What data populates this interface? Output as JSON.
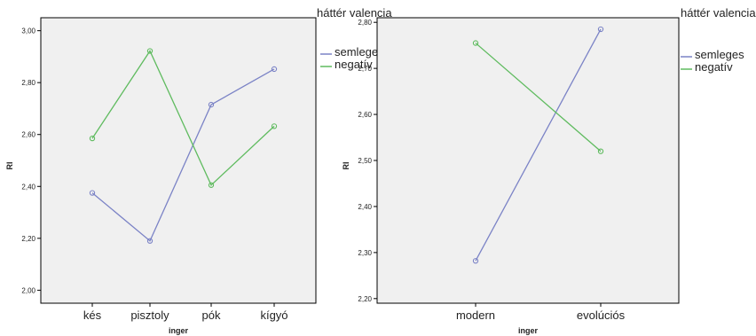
{
  "chart_data": [
    {
      "type": "line",
      "title": "",
      "xlabel": "inger",
      "ylabel": "RI",
      "categories": [
        "kés",
        "pisztoly",
        "pók",
        "kígyó"
      ],
      "ylim": [
        1.95,
        3.05
      ],
      "yticks": [
        2.0,
        2.2,
        2.4,
        2.6,
        2.8,
        3.0
      ],
      "ytick_labels": [
        "2,00",
        "2,20",
        "2,40",
        "2,60",
        "2,80",
        "3,00"
      ],
      "grid": false,
      "legend": {
        "title": "háttér valencia",
        "position": "right"
      },
      "series": [
        {
          "name": "semleges",
          "color": "#7b83c6",
          "values": [
            2.375,
            2.19,
            2.715,
            2.852
          ]
        },
        {
          "name": "negatív",
          "color": "#5fbb5f",
          "values": [
            2.585,
            2.922,
            2.405,
            2.632
          ]
        }
      ]
    },
    {
      "type": "line",
      "title": "",
      "xlabel": "inger",
      "ylabel": "RI",
      "categories": [
        "modern",
        "evolúciós"
      ],
      "ylim": [
        2.19,
        2.81
      ],
      "yticks": [
        2.2,
        2.3,
        2.4,
        2.5,
        2.6,
        2.7,
        2.8
      ],
      "ytick_labels": [
        "2,20",
        "2,30",
        "2,40",
        "2,50",
        "2,60",
        "2,70",
        "2,80"
      ],
      "grid": false,
      "legend": {
        "title": "háttér valencia",
        "position": "right"
      },
      "series": [
        {
          "name": "semleges",
          "color": "#7b83c6",
          "values": [
            2.282,
            2.785
          ]
        },
        {
          "name": "negatív",
          "color": "#5fbb5f",
          "values": [
            2.755,
            2.52
          ]
        }
      ]
    }
  ]
}
